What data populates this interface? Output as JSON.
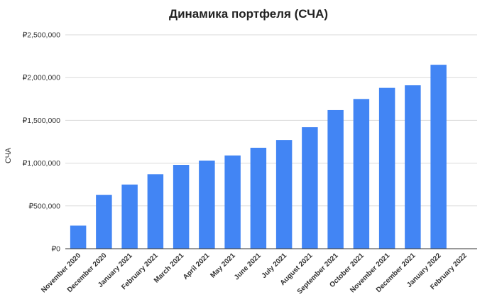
{
  "chart_data": {
    "type": "bar",
    "title": "Динамика портфеля (СЧА)",
    "xlabel": "",
    "ylabel": "СЧА",
    "ylim": [
      0,
      2500000
    ],
    "yticks": [
      0,
      500000,
      1000000,
      1500000,
      2000000,
      2500000
    ],
    "ytick_labels": [
      "₽0",
      "₽500,000",
      "₽1,000,000",
      "₽1,500,000",
      "₽2,000,000",
      "₽2,500,000"
    ],
    "categories": [
      "November 2020",
      "December 2020",
      "January 2021",
      "February 2021",
      "March 2021",
      "April 2021",
      "May 2021",
      "June 2021",
      "July 2021",
      "August 2021",
      "September 2021",
      "October 2021",
      "November 2021",
      "December 2021",
      "January 2022",
      "February 2022"
    ],
    "values": [
      270000,
      630000,
      750000,
      870000,
      980000,
      1030000,
      1090000,
      1180000,
      1270000,
      1420000,
      1620000,
      1750000,
      1880000,
      1910000,
      2150000,
      null
    ],
    "grid": true,
    "colors": {
      "bar": "#4285f4",
      "grid": "#d9d9d9",
      "axis": "#333333"
    }
  }
}
